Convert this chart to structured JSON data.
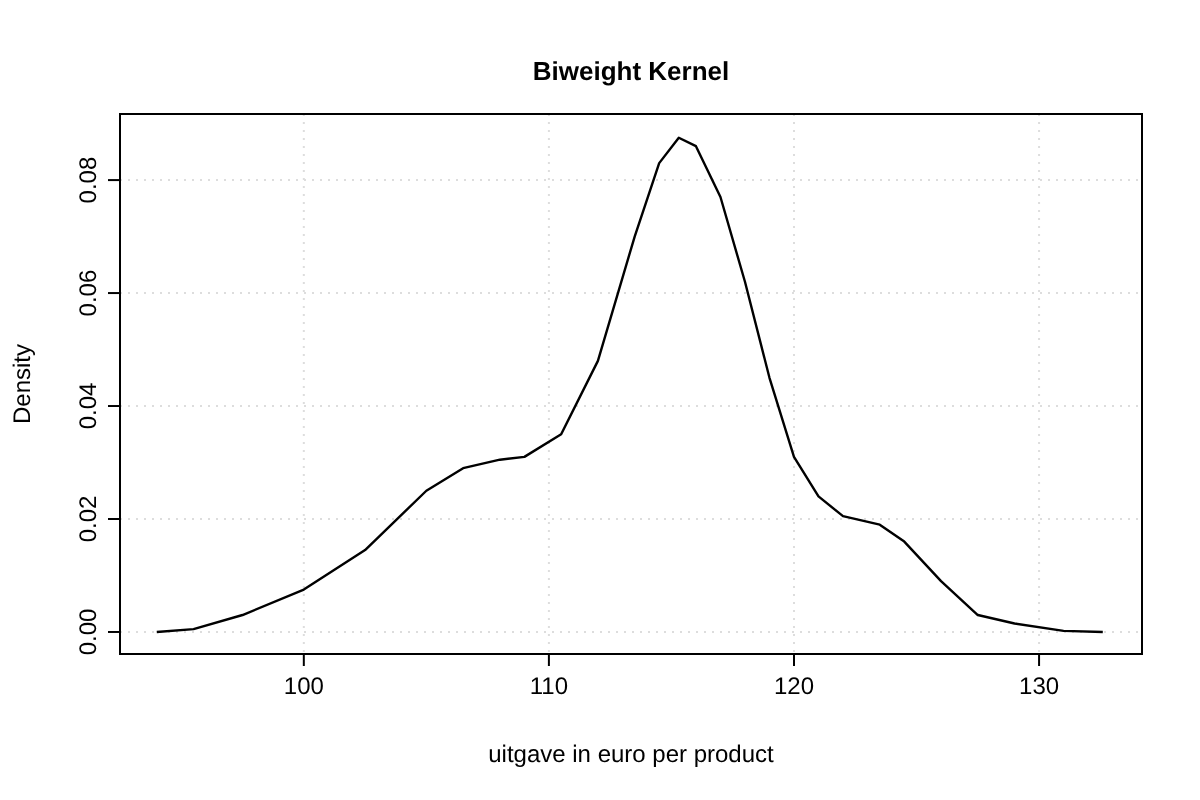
{
  "chart_data": {
    "type": "line",
    "title": "Biweight Kernel",
    "xlabel": "uitgave in euro per product",
    "ylabel": "Density",
    "x": [
      94.0,
      95.5,
      97.5,
      100,
      102.5,
      105,
      106.5,
      108,
      109,
      110.5,
      112,
      113.5,
      114.5,
      115.3,
      116,
      117,
      118,
      119,
      120,
      121,
      122,
      123.5,
      124.5,
      126,
      127.5,
      129,
      131,
      132.6
    ],
    "series": [
      {
        "color": "#000000",
        "values": [
          0,
          0.0005,
          0.003,
          0.0075,
          0.0145,
          0.025,
          0.029,
          0.0305,
          0.031,
          0.035,
          0.048,
          0.07,
          0.083,
          0.0875,
          0.086,
          0.077,
          0.062,
          0.045,
          0.031,
          0.024,
          0.0205,
          0.019,
          0.016,
          0.009,
          0.003,
          0.0015,
          0.0002,
          0
        ]
      }
    ],
    "xlim": [
      92.5,
      134.2
    ],
    "ylim": [
      -0.0039,
      0.0917
    ],
    "xticks": [
      100,
      110,
      120,
      130
    ],
    "yticks": [
      {
        "value": 0,
        "label": "0.00"
      },
      {
        "value": 0.02,
        "label": "0.02"
      },
      {
        "value": 0.04,
        "label": "0.04"
      },
      {
        "value": 0.06,
        "label": "0.06"
      },
      {
        "value": 0.08,
        "label": "0.08"
      }
    ],
    "grid": true,
    "line_style": "solid",
    "marker": "none"
  }
}
